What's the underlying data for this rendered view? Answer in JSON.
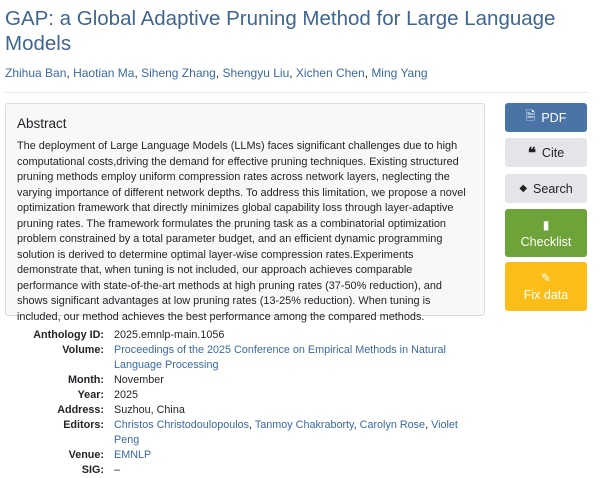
{
  "title": "GAP: a Global Adaptive Pruning Method for Large Language Models",
  "authors": [
    "Zhihua Ban",
    "Haotian Ma",
    "Siheng Zhang",
    "Shengyu Liu",
    "Xichen Chen",
    "Ming Yang"
  ],
  "abstract": {
    "heading": "Abstract",
    "text": "The deployment of Large Language Models (LLMs) faces significant challenges due to high computational costs,driving the demand for effective pruning techniques. Existing structured pruning methods employ uniform compression rates across network layers, neglecting the varying importance of different network depths. To address this limitation, we propose a novel optimization framework that directly minimizes global capability loss through layer-adaptive pruning rates. The framework formulates the pruning task as a combinatorial optimization problem constrained by a total parameter budget, and an efficient dynamic programming solution is derived to determine optimal layer-wise compression rates.Experiments demonstrate that, when tuning is not included, our approach achieves comparable performance with state-of-the-art methods at high pruning rates (37-50% reduction), and shows significant advantages at low pruning rates (13-25% reduction). When tuning is included, our method achieves the best performance among the compared methods."
  },
  "buttons": {
    "pdf": "PDF",
    "cite": "Cite",
    "search": "Search",
    "checklist": "Checklist",
    "fix": "Fix data"
  },
  "details": {
    "anthology_id": {
      "label": "Anthology ID:",
      "value": "2025.emnlp-main.1056"
    },
    "volume": {
      "label": "Volume:",
      "value": "Proceedings of the 2025 Conference on Empirical Methods in Natural Language Processing"
    },
    "month": {
      "label": "Month:",
      "value": "November"
    },
    "year": {
      "label": "Year:",
      "value": "2025"
    },
    "address": {
      "label": "Address:",
      "value": "Suzhou, China"
    },
    "editors": {
      "label": "Editors:",
      "values": [
        "Christos Christodoulopoulos",
        "Tanmoy Chakraborty",
        "Carolyn Rose",
        "Violet Peng"
      ]
    },
    "venue": {
      "label": "Venue:",
      "value": "EMNLP"
    },
    "sig": {
      "label": "SIG:",
      "value": "–"
    }
  },
  "colors": {
    "title": "#3f6591",
    "link": "#3b6aa0",
    "pdf": "#4a74a6",
    "cite": "#e4e5e8",
    "checklist": "#6ea33a",
    "fix": "#fbbd18"
  }
}
